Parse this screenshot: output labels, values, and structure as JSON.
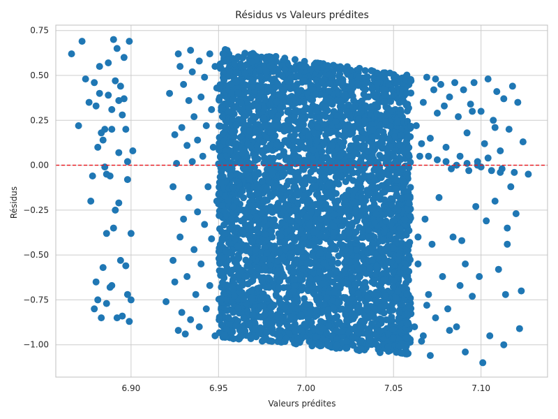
{
  "chart_data": {
    "type": "scatter",
    "title": "Résidus vs Valeurs prédites",
    "xlabel": "Valeurs prédites",
    "ylabel": "Résidus",
    "xlim": [
      6.857,
      7.138
    ],
    "ylim": [
      -1.18,
      0.78
    ],
    "grid": true,
    "x_ticks": [
      {
        "value": 6.9,
        "label": "6.90"
      },
      {
        "value": 6.95,
        "label": "6.95"
      },
      {
        "value": 7.0,
        "label": "7.00"
      },
      {
        "value": 7.05,
        "label": "7.05"
      },
      {
        "value": 7.1,
        "label": "7.10"
      }
    ],
    "y_ticks": [
      {
        "value": -1.0,
        "label": "−1.00"
      },
      {
        "value": -0.75,
        "label": "−0.75"
      },
      {
        "value": -0.5,
        "label": "−0.50"
      },
      {
        "value": -0.25,
        "label": "−0.25"
      },
      {
        "value": 0.0,
        "label": "0.00"
      },
      {
        "value": 0.25,
        "label": "0.25"
      },
      {
        "value": 0.5,
        "label": "0.50"
      },
      {
        "value": 0.75,
        "label": "0.75"
      }
    ],
    "reference_line": {
      "y": 0,
      "color": "#e8131a",
      "style": "dashed"
    },
    "series": [
      {
        "color": "#1f77b4",
        "points": [
          [
            6.866,
            0.62
          ],
          [
            6.87,
            0.22
          ],
          [
            6.872,
            0.69
          ],
          [
            6.874,
            0.48
          ],
          [
            6.876,
            0.35
          ],
          [
            6.877,
            -0.2
          ],
          [
            6.878,
            -0.06
          ],
          [
            6.879,
            0.46
          ],
          [
            6.88,
            -0.65
          ],
          [
            6.88,
            0.33
          ],
          [
            6.881,
            -0.75
          ],
          [
            6.882,
            0.4
          ],
          [
            6.882,
            0.55
          ],
          [
            6.883,
            0.18
          ],
          [
            6.883,
            -0.85
          ],
          [
            6.884,
            -0.57
          ],
          [
            6.884,
            0.14
          ],
          [
            6.885,
            -0.01
          ],
          [
            6.885,
            0.2
          ],
          [
            6.886,
            -0.38
          ],
          [
            6.886,
            -0.77
          ],
          [
            6.887,
            0.57
          ],
          [
            6.887,
            0.39
          ],
          [
            6.888,
            -0.06
          ],
          [
            6.888,
            -0.68
          ],
          [
            6.889,
            0.31
          ],
          [
            6.889,
            0.2
          ],
          [
            6.89,
            0.7
          ],
          [
            6.89,
            -0.35
          ],
          [
            6.891,
            0.47
          ],
          [
            6.891,
            -0.25
          ],
          [
            6.892,
            -0.85
          ],
          [
            6.892,
            0.65
          ],
          [
            6.893,
            0.07
          ],
          [
            6.893,
            -0.21
          ],
          [
            6.894,
            0.44
          ],
          [
            6.894,
            -0.53
          ],
          [
            6.895,
            -0.84
          ],
          [
            6.895,
            0.28
          ],
          [
            6.896,
            0.6
          ],
          [
            6.896,
            0.37
          ],
          [
            6.897,
            -0.56
          ],
          [
            6.897,
            0.2
          ],
          [
            6.898,
            -0.72
          ],
          [
            6.898,
            0.02
          ],
          [
            6.899,
            -0.87
          ],
          [
            6.899,
            0.69
          ],
          [
            6.9,
            -0.38
          ],
          [
            6.9,
            -0.75
          ],
          [
            6.901,
            0.08
          ],
          [
            6.898,
            -0.08
          ],
          [
            6.889,
            -0.67
          ],
          [
            6.881,
            0.1
          ],
          [
            6.886,
            -0.05
          ],
          [
            6.893,
            0.36
          ],
          [
            6.879,
            -0.8
          ],
          [
            6.92,
            -0.76
          ],
          [
            6.922,
            0.4
          ],
          [
            6.924,
            -0.53
          ],
          [
            6.924,
            -0.12
          ],
          [
            6.925,
            0.17
          ],
          [
            6.925,
            -0.65
          ],
          [
            6.926,
            0.01
          ],
          [
            6.927,
            -0.92
          ],
          [
            6.927,
            0.62
          ],
          [
            6.928,
            -0.4
          ],
          [
            6.928,
            0.55
          ],
          [
            6.929,
            -0.82
          ],
          [
            6.929,
            0.21
          ],
          [
            6.93,
            -0.3
          ],
          [
            6.93,
            0.45
          ],
          [
            6.931,
            -0.94
          ],
          [
            6.932,
            0.11
          ],
          [
            6.932,
            -0.62
          ],
          [
            6.933,
            0.36
          ],
          [
            6.933,
            -0.18
          ],
          [
            6.934,
            0.64
          ],
          [
            6.934,
            -0.86
          ],
          [
            6.935,
            0.02
          ],
          [
            6.935,
            0.52
          ],
          [
            6.936,
            -0.47
          ],
          [
            6.936,
            0.27
          ],
          [
            6.937,
            -0.72
          ],
          [
            6.938,
            0.14
          ],
          [
            6.938,
            -0.26
          ],
          [
            6.939,
            0.58
          ],
          [
            6.939,
            -0.9
          ],
          [
            6.94,
            0.38
          ],
          [
            6.94,
            -0.55
          ],
          [
            6.941,
            0.05
          ],
          [
            6.942,
            -0.33
          ],
          [
            6.942,
            0.49
          ],
          [
            6.943,
            -0.8
          ],
          [
            6.943,
            0.22
          ],
          [
            6.944,
            -0.12
          ],
          [
            6.945,
            0.62
          ],
          [
            6.945,
            -0.67
          ],
          [
            6.946,
            0.31
          ],
          [
            6.946,
            -0.41
          ],
          [
            6.947,
            0.1
          ],
          [
            6.948,
            -0.95
          ],
          [
            6.948,
            0.55
          ],
          [
            6.949,
            -0.2
          ],
          [
            6.949,
            0.43
          ],
          [
            7.06,
            0.47
          ],
          [
            7.062,
            -0.9
          ],
          [
            7.063,
            0.22
          ],
          [
            7.064,
            -0.55
          ],
          [
            7.065,
            0.05
          ],
          [
            7.066,
            -0.98
          ],
          [
            7.067,
            0.35
          ],
          [
            7.068,
            -0.3
          ],
          [
            7.069,
            0.49
          ],
          [
            7.07,
            -0.72
          ],
          [
            7.071,
            0.15
          ],
          [
            7.072,
            -0.44
          ],
          [
            7.073,
            0.42
          ],
          [
            7.074,
            -0.85
          ],
          [
            7.075,
            0.29
          ],
          [
            7.076,
            -0.18
          ],
          [
            7.077,
            0.45
          ],
          [
            7.078,
            -0.62
          ],
          [
            7.08,
            0.1
          ],
          [
            7.081,
            -0.8
          ],
          [
            7.082,
            0.38
          ],
          [
            7.083,
            -0.02
          ],
          [
            7.084,
            -0.4
          ],
          [
            7.085,
            0.46
          ],
          [
            7.086,
            -0.9
          ],
          [
            7.087,
            0.27
          ],
          [
            7.088,
            0.05
          ],
          [
            7.089,
            -0.42
          ],
          [
            7.09,
            0.42
          ],
          [
            7.091,
            -0.55
          ],
          [
            7.092,
            0.18
          ],
          [
            7.093,
            -0.03
          ],
          [
            7.094,
            0.34
          ],
          [
            7.095,
            -0.73
          ],
          [
            7.096,
            0.46
          ],
          [
            7.097,
            -0.23
          ],
          [
            7.098,
            0.02
          ],
          [
            7.099,
            -0.62
          ],
          [
            7.1,
            0.3
          ],
          [
            7.101,
            -1.1
          ],
          [
            7.102,
            0.12
          ],
          [
            7.103,
            -0.31
          ],
          [
            7.104,
            0.48
          ],
          [
            7.105,
            -0.95
          ],
          [
            7.106,
            -0.03
          ],
          [
            7.107,
            0.25
          ],
          [
            7.108,
            -0.2
          ],
          [
            7.109,
            0.41
          ],
          [
            7.11,
            -0.58
          ],
          [
            7.111,
            0.08
          ],
          [
            7.112,
            -0.02
          ],
          [
            7.113,
            0.37
          ],
          [
            7.114,
            -0.72
          ],
          [
            7.115,
            -0.35
          ],
          [
            7.116,
            0.2
          ],
          [
            7.117,
            -0.12
          ],
          [
            7.118,
            0.44
          ],
          [
            7.119,
            -0.04
          ],
          [
            7.12,
            -0.27
          ],
          [
            7.121,
            0.35
          ],
          [
            7.122,
            -0.91
          ],
          [
            7.123,
            -0.7
          ],
          [
            7.124,
            0.13
          ],
          [
            7.127,
            -0.05
          ],
          [
            7.113,
            -1.0
          ],
          [
            7.091,
            -1.04
          ],
          [
            7.108,
            0.21
          ],
          [
            7.082,
            -0.92
          ],
          [
            7.074,
            0.48
          ],
          [
            7.066,
            0.12
          ],
          [
            7.069,
            -0.78
          ],
          [
            7.095,
            0.3
          ],
          [
            7.115,
            -0.44
          ],
          [
            7.088,
            -0.67
          ],
          [
            7.079,
            0.33
          ],
          [
            7.1,
            -0.01
          ],
          [
            7.104,
            0.04
          ],
          [
            7.111,
            -0.04
          ],
          [
            7.098,
            0.0
          ],
          [
            7.092,
            0.01
          ],
          [
            7.086,
            0.0
          ],
          [
            7.08,
            0.02
          ],
          [
            7.075,
            0.03
          ],
          [
            7.07,
            0.05
          ],
          [
            7.067,
            -0.95
          ],
          [
            7.071,
            -1.06
          ],
          [
            7.064,
            -0.4
          ]
        ]
      }
    ],
    "dense_cloud": {
      "x_range": [
        6.95,
        7.06
      ],
      "upper_edge": [
        [
          6.95,
          0.65
        ],
        [
          7.06,
          0.5
        ]
      ],
      "lower_edge": [
        [
          6.95,
          -0.96
        ],
        [
          7.06,
          -1.06
        ]
      ],
      "point_count_approx": 4200
    }
  }
}
